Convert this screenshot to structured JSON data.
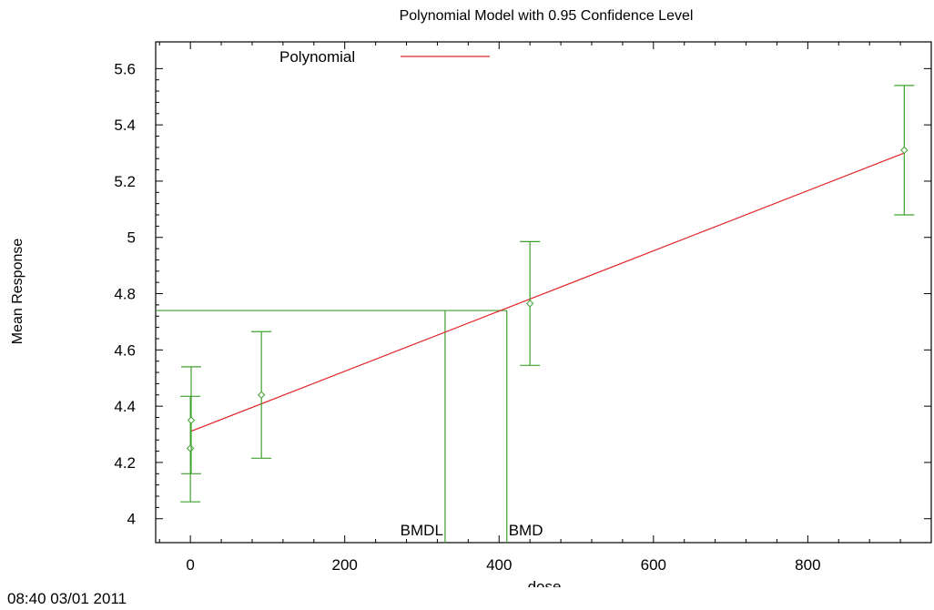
{
  "chart_data": {
    "type": "scatter",
    "title": "Polynomial Model with 0.95 Confidence Level",
    "xlabel": "dose",
    "ylabel": "Mean Response",
    "xlim": [
      -45,
      960
    ],
    "ylim": [
      3.915,
      5.695
    ],
    "xticks": [
      0,
      200,
      400,
      600,
      800
    ],
    "xtick_labels": [
      "0",
      "200",
      "400",
      "600",
      "800"
    ],
    "yticks": [
      4,
      4.2,
      4.4,
      4.6,
      4.8,
      5,
      5.2,
      5.4,
      5.6
    ],
    "ytick_labels": [
      "4",
      "4.2",
      "4.4",
      "4.6",
      "4.8",
      "5",
      "5.2",
      "5.4",
      "5.6"
    ],
    "legend_position": "top",
    "series": [
      {
        "name": "Polynomial",
        "kind": "line",
        "color": "#e0262b",
        "points": [
          [
            0,
            4.31
          ],
          [
            925,
            5.3
          ]
        ]
      },
      {
        "kind": "errorbar",
        "color": "#3fa02f",
        "points": [
          {
            "x": 0,
            "y": 4.25,
            "low": 4.06,
            "high": 4.435
          },
          {
            "x": 1,
            "y": 4.35,
            "low": 4.16,
            "high": 4.54
          },
          {
            "x": 92,
            "y": 4.44,
            "low": 4.215,
            "high": 4.665
          },
          {
            "x": 440,
            "y": 4.765,
            "low": 4.545,
            "high": 4.985
          },
          {
            "x": 925,
            "y": 5.31,
            "low": 5.08,
            "high": 5.54
          }
        ]
      }
    ],
    "bmd_level": 4.74,
    "bmdl": 330,
    "bmd": 410,
    "annotations": [
      {
        "text": "BMDL",
        "x": 330
      },
      {
        "text": "BMD",
        "x": 410
      }
    ],
    "colors": {
      "model": "#e0262b",
      "data": "#3fa02f",
      "bmd_lines": "#3fa02f"
    }
  },
  "footer": {
    "timestamp": "08:40 03/01 2011"
  }
}
